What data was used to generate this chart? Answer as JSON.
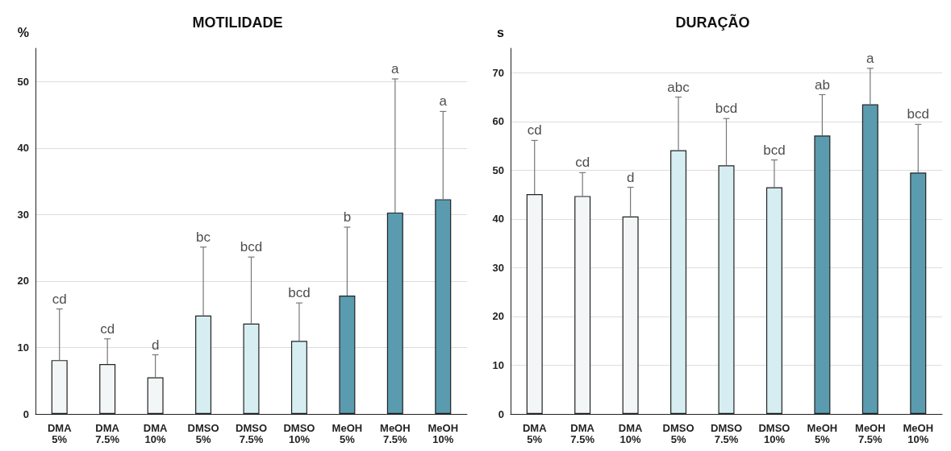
{
  "chart_data": [
    {
      "type": "bar",
      "title": "MOTILIDADE",
      "ylabel": "%",
      "categories": [
        "DMA\n5%",
        "DMA\n7.5%",
        "DMA\n10%",
        "DMSO\n5%",
        "DMSO\n7.5%",
        "DMSO\n10%",
        "MeOH\n5%",
        "MeOH\n7.5%",
        "MeOH\n10%"
      ],
      "values": [
        8.1,
        7.5,
        5.5,
        14.8,
        13.6,
        11.0,
        17.8,
        30.3,
        32.3
      ],
      "errors": [
        [
          8.1,
          15.8
        ],
        [
          7.5,
          11.3
        ],
        [
          5.5,
          8.9
        ],
        [
          14.8,
          25.1
        ],
        [
          13.6,
          23.6
        ],
        [
          11.0,
          16.7
        ],
        [
          17.8,
          28.1
        ],
        [
          30.3,
          50.4
        ],
        [
          32.3,
          45.5
        ]
      ],
      "colors": [
        "#f3f6f6",
        "#f3f6f6",
        "#f3f6f6",
        "#d6eef2",
        "#d6eef2",
        "#d6eef2",
        "#5a9bb0",
        "#5a9bb0",
        "#5a9bb0"
      ],
      "ylim": [
        0,
        55
      ],
      "yticks": [
        0,
        10,
        20,
        30,
        40,
        50
      ],
      "grid": "y",
      "annotations": [
        {
          "text": "cd",
          "x": "DMA\n5%",
          "y": 15.8
        },
        {
          "text": "cd",
          "x": "DMA\n7.5%",
          "y": 11.3
        },
        {
          "text": "d",
          "x": "DMA\n10%",
          "y": 8.9
        },
        {
          "text": "bc",
          "x": "DMSO\n5%",
          "y": 25.1
        },
        {
          "text": "bcd",
          "x": "DMSO\n7.5%",
          "y": 23.6
        },
        {
          "text": "bcd",
          "x": "DMSO\n10%",
          "y": 16.7
        },
        {
          "text": "b",
          "x": "MeOH\n5%",
          "y": 28.1
        },
        {
          "text": "a",
          "x": "MeOH\n7.5%",
          "y": 50.4
        },
        {
          "text": "a",
          "x": "MeOH\n10%",
          "y": 45.5
        }
      ]
    },
    {
      "type": "bar",
      "title": "DURAÇÃO",
      "ylabel": "s",
      "categories": [
        "DMA\n5%",
        "DMA\n7.5%",
        "DMA\n10%",
        "DMSO\n5%",
        "DMSO\n7.5%",
        "DMSO\n10%",
        "MeOH\n5%",
        "MeOH\n7.5%",
        "MeOH\n10%"
      ],
      "values": [
        45.1,
        44.7,
        40.5,
        54.1,
        51.0,
        46.5,
        57.1,
        63.5,
        49.5
      ],
      "errors": [
        [
          45.1,
          56.1
        ],
        [
          44.7,
          49.5
        ],
        [
          40.5,
          46.5
        ],
        [
          54.1,
          65.0
        ],
        [
          51.0,
          60.6
        ],
        [
          46.5,
          52.1
        ],
        [
          57.1,
          65.5
        ],
        [
          63.5,
          70.9
        ],
        [
          49.5,
          59.4
        ]
      ],
      "colors": [
        "#f3f6f6",
        "#f3f6f6",
        "#f3f6f6",
        "#d6eef2",
        "#d6eef2",
        "#d6eef2",
        "#5a9bb0",
        "#5a9bb0",
        "#5a9bb0"
      ],
      "ylim": [
        0,
        75
      ],
      "yticks": [
        0,
        10,
        20,
        30,
        40,
        50,
        60,
        70
      ],
      "grid": "y",
      "annotations": [
        {
          "text": "cd",
          "x": "DMA\n5%",
          "y": 56.1
        },
        {
          "text": "cd",
          "x": "DMA\n7.5%",
          "y": 49.5
        },
        {
          "text": "d",
          "x": "DMA\n10%",
          "y": 46.5
        },
        {
          "text": "abc",
          "x": "DMSO\n5%",
          "y": 65.0
        },
        {
          "text": "bcd",
          "x": "DMSO\n7.5%",
          "y": 60.6
        },
        {
          "text": "bcd",
          "x": "DMSO\n10%",
          "y": 52.1
        },
        {
          "text": "ab",
          "x": "MeOH\n5%",
          "y": 65.5
        },
        {
          "text": "a",
          "x": "MeOH\n7.5%",
          "y": 70.9
        },
        {
          "text": "bcd",
          "x": "MeOH\n10%",
          "y": 59.4
        }
      ]
    }
  ]
}
